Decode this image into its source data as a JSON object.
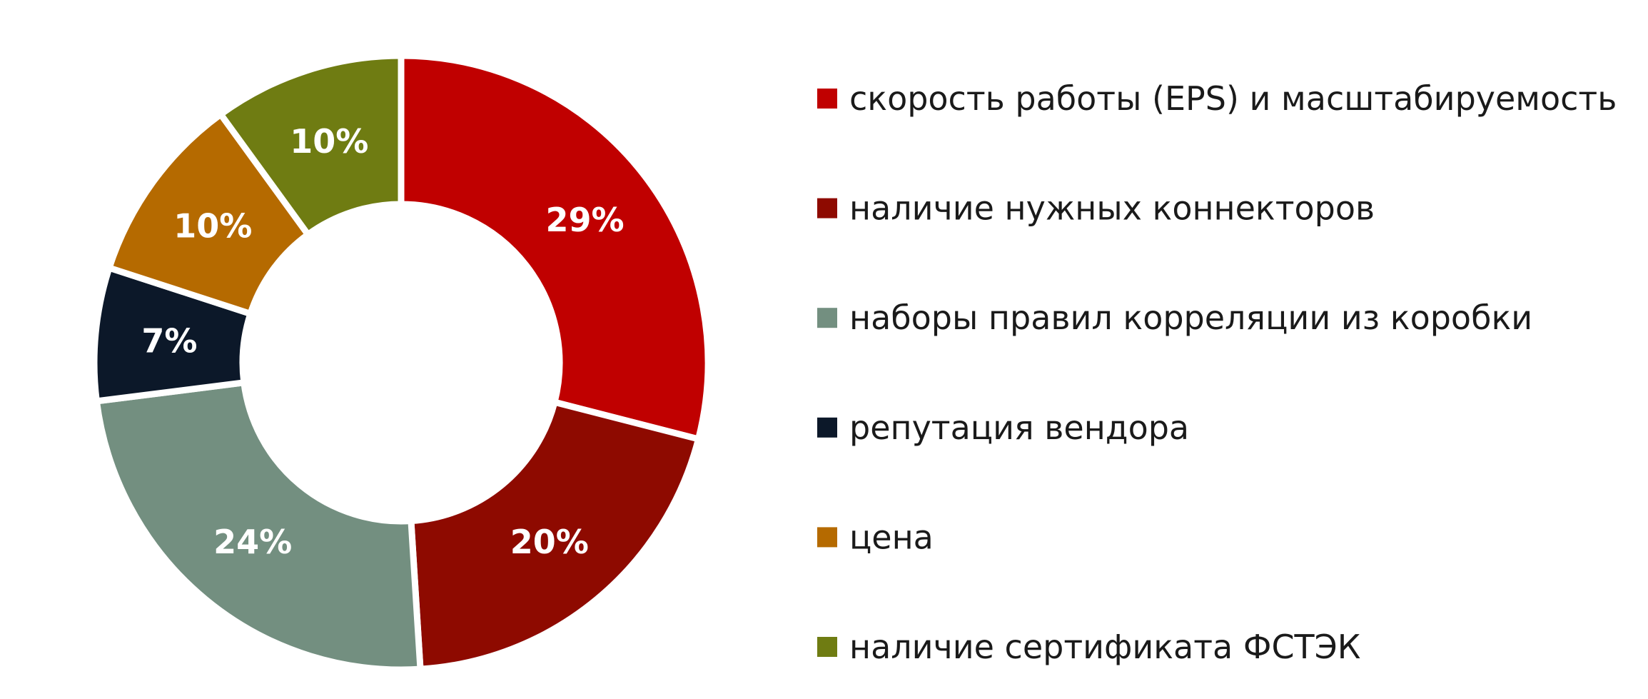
{
  "chart_data": {
    "type": "donut",
    "categories": [
      "скорость работы (EPS) и масштабируемость",
      "наличие нужных коннекторов",
      "наборы правил корреляции из коробки",
      "репутация вендора",
      "цена",
      "наличие сертификата ФСТЭК"
    ],
    "values": [
      29,
      20,
      24,
      7,
      10,
      10
    ],
    "value_labels": [
      "29%",
      "20%",
      "24%",
      "7%",
      "10%",
      "10%"
    ],
    "colors": [
      "#c00000",
      "#8e0a00",
      "#738f80",
      "#0c1829",
      "#b56a00",
      "#6f7c12"
    ],
    "legend": "right"
  }
}
